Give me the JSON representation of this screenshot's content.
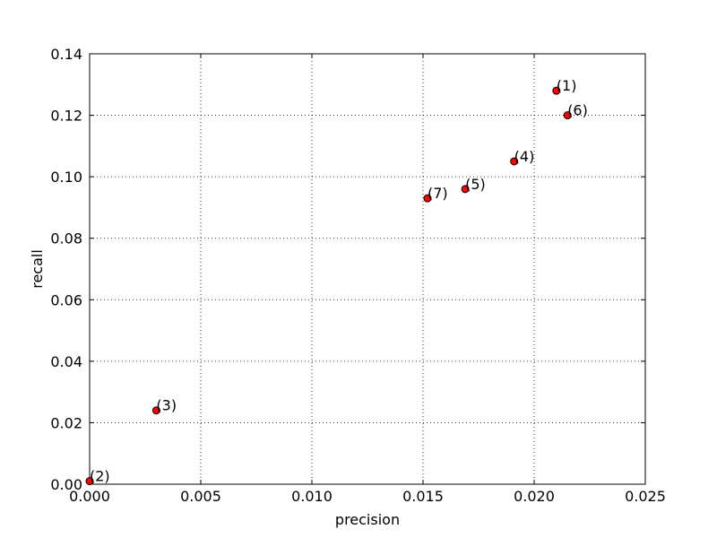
{
  "chart_data": {
    "type": "scatter",
    "title": "",
    "xlabel": "precision",
    "ylabel": "recall",
    "xlim": [
      0.0,
      0.025
    ],
    "ylim": [
      0.0,
      0.14
    ],
    "grid": true,
    "x_ticks": [
      0.0,
      0.005,
      0.01,
      0.015,
      0.02,
      0.025
    ],
    "x_tick_labels": [
      "0.000",
      "0.005",
      "0.010",
      "0.015",
      "0.020",
      "0.025"
    ],
    "y_ticks": [
      0.0,
      0.02,
      0.04,
      0.06,
      0.08,
      0.1,
      0.12,
      0.14
    ],
    "y_tick_labels": [
      "0.00",
      "0.02",
      "0.04",
      "0.06",
      "0.08",
      "0.10",
      "0.12",
      "0.14"
    ],
    "marker_color": "#ff0000",
    "marker_edge_color": "#000000",
    "points": [
      {
        "label": "(1)",
        "x": 0.021,
        "y": 0.128
      },
      {
        "label": "(2)",
        "x": 0.0,
        "y": 0.001
      },
      {
        "label": "(3)",
        "x": 0.003,
        "y": 0.024
      },
      {
        "label": "(4)",
        "x": 0.0191,
        "y": 0.105
      },
      {
        "label": "(5)",
        "x": 0.0169,
        "y": 0.096
      },
      {
        "label": "(6)",
        "x": 0.0215,
        "y": 0.12
      },
      {
        "label": "(7)",
        "x": 0.0152,
        "y": 0.093
      }
    ]
  }
}
